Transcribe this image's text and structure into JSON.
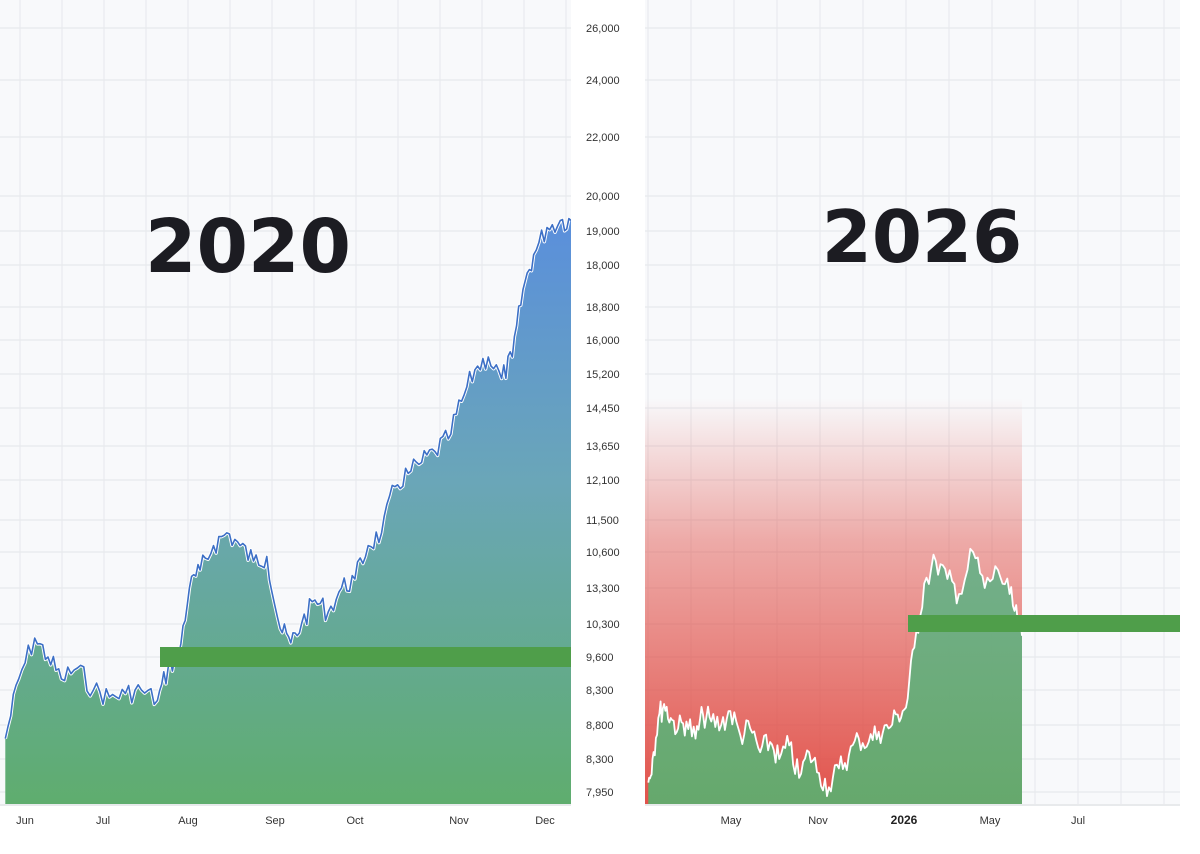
{
  "chart_data": [
    {
      "type": "area",
      "title": "2020",
      "x_labels": [
        "Jun",
        "Jul",
        "Aug",
        "Sep",
        "Oct",
        "Nov",
        "Dec"
      ],
      "reference_line": 9600,
      "colors": {
        "area_top": "#5a8fdc",
        "area_bottom": "#5fad6e",
        "line": "#3c6fc6",
        "reference": "#4f9e4a"
      },
      "series": [
        {
          "x": [
            "2020-05-22",
            "2020-05-27",
            "2020-06-02",
            "2020-06-07",
            "2020-06-12",
            "2020-06-18",
            "2020-06-24",
            "2020-06-30",
            "2020-07-06",
            "2020-07-12",
            "2020-07-18",
            "2020-07-22",
            "2020-07-26",
            "2020-07-30",
            "2020-08-03",
            "2020-08-08",
            "2020-08-13",
            "2020-08-18",
            "2020-08-23",
            "2020-08-28",
            "2020-09-02",
            "2020-09-06",
            "2020-09-10",
            "2020-09-15",
            "2020-09-20",
            "2020-09-25",
            "2020-09-30",
            "2020-10-05",
            "2020-10-10",
            "2020-10-15",
            "2020-10-20",
            "2020-10-25",
            "2020-10-30",
            "2020-11-04",
            "2020-11-09",
            "2020-11-14",
            "2020-11-19",
            "2020-11-24",
            "2020-11-28",
            "2020-12-02",
            "2020-12-06",
            "2020-12-11",
            "2020-12-16",
            "2020-12-20"
          ],
          "values": [
            8600,
            9400,
            10000,
            9600,
            9400,
            9500,
            9300,
            9200,
            9250,
            9300,
            9150,
            9500,
            9650,
            10600,
            10800,
            11100,
            11300,
            11100,
            10900,
            10950,
            10200,
            9900,
            10300,
            10500,
            10400,
            10600,
            10700,
            11100,
            11300,
            12000,
            12400,
            12900,
            13400,
            13800,
            14600,
            15300,
            15600,
            15100,
            15600,
            17300,
            18300,
            19100,
            19300,
            19300
          ]
        }
      ]
    },
    {
      "type": "area",
      "title": "2026",
      "x_labels": [
        "May",
        "Nov",
        "2026",
        "May",
        "Jul"
      ],
      "reference_line": 10300,
      "colors": {
        "area_bottom": "#5fad6e",
        "red_zone": "#e04a42",
        "line": "#ffffff",
        "reference": "#4f9e4a"
      },
      "series": [
        {
          "x": [
            "2025-03-05",
            "2025-03-10",
            "2025-03-17",
            "2025-03-24",
            "2025-04-01",
            "2025-04-10",
            "2025-04-20",
            "2025-05-01",
            "2025-05-10",
            "2025-05-20",
            "2025-06-01",
            "2025-06-12",
            "2025-06-24",
            "2025-07-06",
            "2025-07-18",
            "2025-07-30",
            "2025-08-10",
            "2025-08-22",
            "2025-09-03",
            "2025-09-15",
            "2025-09-27",
            "2025-10-09",
            "2025-10-21",
            "2025-11-02",
            "2025-11-14",
            "2025-11-26",
            "2025-12-08",
            "2025-12-20",
            "2025-12-31",
            "2026-01-10",
            "2026-01-20",
            "2026-02-01",
            "2026-02-15",
            "2026-03-01",
            "2026-03-15",
            "2026-04-01",
            "2026-04-15",
            "2026-05-01",
            "2026-05-15",
            "2026-05-25",
            "2026-05-30"
          ],
          "values": [
            8050,
            8300,
            8900,
            9100,
            8900,
            8750,
            8850,
            8600,
            8950,
            8850,
            8800,
            9000,
            8650,
            8750,
            8400,
            8550,
            8300,
            8500,
            8100,
            8400,
            8150,
            8000,
            8200,
            8350,
            8600,
            8550,
            8700,
            8750,
            8950,
            9050,
            9800,
            10650,
            10900,
            10700,
            10550,
            11000,
            10600,
            10800,
            10550,
            10300,
            10050
          ]
        }
      ]
    }
  ],
  "axis": {
    "y_labels": [
      "26,000",
      "24,000",
      "22,000",
      "20,000",
      "19,000",
      "18,000",
      "18,800",
      "16,000",
      "15,200",
      "14,450",
      "13,650",
      "12,100",
      "11,500",
      "10,600",
      "13,300",
      "10,300",
      "9,600",
      "8,300",
      "8,800",
      "8,300",
      "7,950"
    ]
  }
}
